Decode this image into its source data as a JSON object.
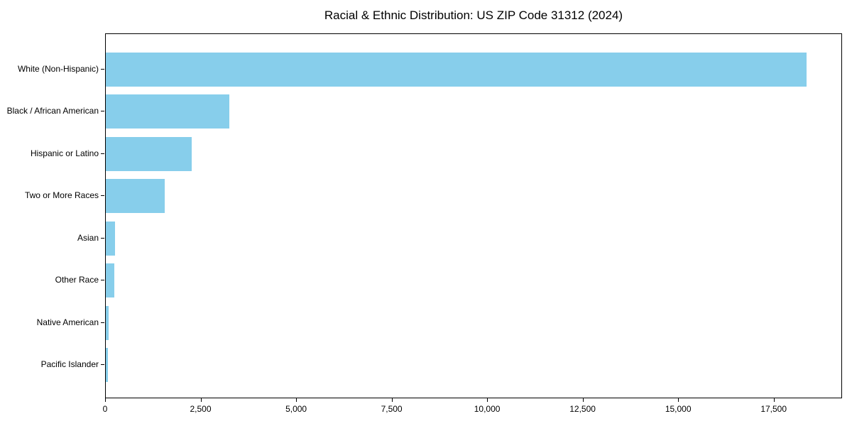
{
  "chart_data": {
    "type": "bar",
    "orientation": "horizontal",
    "title": "Racial & Ethnic Distribution: US ZIP Code 31312 (2024)",
    "categories": [
      "White (Non-Hispanic)",
      "Black / African American",
      "Hispanic or Latino",
      "Two or More Races",
      "Asian",
      "Other Race",
      "Native American",
      "Pacific Islander"
    ],
    "values": [
      18370,
      3230,
      2260,
      1550,
      250,
      230,
      75,
      50
    ],
    "xlabel": "",
    "ylabel": "",
    "xlim": [
      0,
      19290
    ],
    "x_ticks": [
      0,
      2500,
      5000,
      7500,
      10000,
      12500,
      15000,
      17500
    ],
    "x_tick_labels": [
      "0",
      "2,500",
      "5,000",
      "7,500",
      "10,000",
      "12,500",
      "15,000",
      "17,500"
    ],
    "bar_color": "#87CEEB",
    "frame_color": "#000000",
    "grid": false,
    "legend": null,
    "bar_height_fraction": 0.8
  }
}
